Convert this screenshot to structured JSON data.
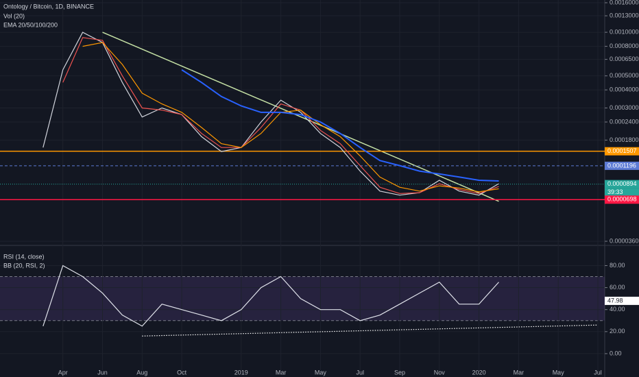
{
  "chart_data": [
    {
      "type": "line",
      "title": "Ontology / Bitcoin, 1D, BINANCE",
      "indicators": [
        "Vol (20)",
        "EMA 20/50/100/200"
      ],
      "log_scale": true,
      "grid": true,
      "xlim": [
        "2018-01",
        "2020-07"
      ],
      "ylim": [
        3.6e-05,
        0.0016
      ],
      "yticks": [
        {
          "value": 0.0016,
          "label": "0.0016000"
        },
        {
          "value": 0.0013,
          "label": "0.0013000"
        },
        {
          "value": 0.001,
          "label": "0.0010000"
        },
        {
          "value": 0.0008,
          "label": "0.0008000"
        },
        {
          "value": 0.00065,
          "label": "0.0006500"
        },
        {
          "value": 0.0005,
          "label": "0.0005000"
        },
        {
          "value": 0.0004,
          "label": "0.0004000"
        },
        {
          "value": 0.0003,
          "label": "0.0003000"
        },
        {
          "value": 0.00024,
          "label": "0.0002400"
        },
        {
          "value": 0.00018,
          "label": "0.0001800"
        },
        {
          "value": 3.6e-05,
          "label": "0.0000360"
        }
      ],
      "x": [
        "2018-03",
        "2018-04",
        "2018-05",
        "2018-06",
        "2018-07",
        "2018-08",
        "2018-09",
        "2018-10",
        "2018-11",
        "2018-12",
        "2019-01",
        "2019-02",
        "2019-03",
        "2019-04",
        "2019-05",
        "2019-06",
        "2019-07",
        "2019-08",
        "2019-09",
        "2019-10",
        "2019-11",
        "2019-12",
        "2020-01",
        "2020-02"
      ],
      "series": [
        {
          "color": "#d1d4dc",
          "values": [
            0.00016,
            0.00055,
            0.001,
            0.00085,
            0.00045,
            0.00026,
            0.0003,
            0.00027,
            0.00019,
            0.00015,
            0.00016,
            0.00024,
            0.00034,
            0.00028,
            0.0002,
            0.00016,
            0.00011,
            8e-05,
            7.5e-05,
            7.8e-05,
            9.5e-05,
            8e-05,
            7.5e-05,
            9e-05
          ]
        },
        {
          "color": "#ef5350",
          "values": [
            null,
            0.00045,
            0.00092,
            0.00088,
            0.0005,
            0.0003,
            0.00029,
            0.00027,
            0.0002,
            0.00016,
            0.00016,
            0.00022,
            0.00032,
            0.00029,
            0.00021,
            0.00017,
            0.00012,
            8.5e-05,
            7.7e-05,
            7.8e-05,
            9e-05,
            8.2e-05,
            7.7e-05,
            8.6e-05
          ]
        },
        {
          "color": "#ff9800",
          "values": [
            null,
            null,
            0.0008,
            0.00085,
            0.0006,
            0.00038,
            0.00032,
            0.00028,
            0.00022,
            0.00017,
            0.00016,
            0.0002,
            0.00028,
            0.00029,
            0.00023,
            0.00019,
            0.00014,
            0.0001,
            8.5e-05,
            8e-05,
            8.7e-05,
            8.4e-05,
            7.9e-05,
            8.3e-05
          ]
        },
        {
          "color": "#2962ff",
          "values": [
            null,
            null,
            null,
            null,
            null,
            null,
            null,
            0.00055,
            0.00045,
            0.00036,
            0.00031,
            0.00028,
            0.00028,
            0.00027,
            0.00024,
            0.0002,
            0.00016,
            0.00013,
            0.00012,
            0.00011,
            0.000105,
            0.0001,
            9.5e-05,
            9.4e-05
          ]
        }
      ],
      "trendline": {
        "color": "#c5e1a5",
        "x": [
          "2018-06",
          "2020-02"
        ],
        "values": [
          0.001,
          6.8e-05
        ]
      },
      "levels": [
        {
          "value": 0.0001507,
          "color": "#ff9800",
          "style": "solid"
        },
        {
          "value": 0.0001196,
          "color": "#5d7bd5",
          "style": "dashed"
        },
        {
          "value": 8.94e-05,
          "color": "#26a69a",
          "style": "dotted"
        },
        {
          "value": 6.98e-05,
          "color": "#ff1744",
          "style": "solid"
        }
      ],
      "countdown": "39:33"
    },
    {
      "type": "line",
      "title": "RSI (14, close)",
      "indicators": [
        "BB (20, RSI, 2)"
      ],
      "grid": true,
      "xlim": [
        "2018-01",
        "2020-07"
      ],
      "ylim": [
        -15,
        94
      ],
      "yticks": [
        {
          "value": 80,
          "label": "80.00"
        },
        {
          "value": 60,
          "label": "60.00"
        },
        {
          "value": 40,
          "label": "40.00"
        },
        {
          "value": 20,
          "label": "20.00"
        },
        {
          "value": 0,
          "label": "0.00"
        }
      ],
      "xticks": [
        {
          "value": "2018-04",
          "label": "Apr"
        },
        {
          "value": "2018-06",
          "label": "Jun"
        },
        {
          "value": "2018-08",
          "label": "Aug"
        },
        {
          "value": "2018-10",
          "label": "Oct"
        },
        {
          "value": "2019-01",
          "label": "2019"
        },
        {
          "value": "2019-03",
          "label": "Mar"
        },
        {
          "value": "2019-05",
          "label": "May"
        },
        {
          "value": "2019-07",
          "label": "Jul"
        },
        {
          "value": "2019-09",
          "label": "Sep"
        },
        {
          "value": "2019-11",
          "label": "Nov"
        },
        {
          "value": "2020-01",
          "label": "2020"
        },
        {
          "value": "2020-03",
          "label": "Mar"
        },
        {
          "value": "2020-05",
          "label": "May"
        },
        {
          "value": "2020-07",
          "label": "Jul"
        }
      ],
      "band": [
        30,
        70
      ],
      "band_color": "#7e57c2",
      "x": [
        "2018-03",
        "2018-04",
        "2018-05",
        "2018-06",
        "2018-07",
        "2018-08",
        "2018-09",
        "2018-10",
        "2018-11",
        "2018-12",
        "2019-01",
        "2019-02",
        "2019-03",
        "2019-04",
        "2019-05",
        "2019-06",
        "2019-07",
        "2019-08",
        "2019-09",
        "2019-10",
        "2019-11",
        "2019-12",
        "2020-01",
        "2020-02"
      ],
      "series": [
        {
          "color": "#e0e3eb",
          "values": [
            25,
            80,
            70,
            55,
            35,
            25,
            45,
            40,
            35,
            30,
            40,
            60,
            70,
            50,
            40,
            40,
            30,
            35,
            45,
            55,
            65,
            45,
            45,
            65
          ]
        }
      ],
      "trendline": {
        "color": "#ffffff",
        "x": [
          "2018-08",
          "2020-07"
        ],
        "values": [
          16,
          26
        ]
      },
      "last_value": 47.98
    }
  ]
}
